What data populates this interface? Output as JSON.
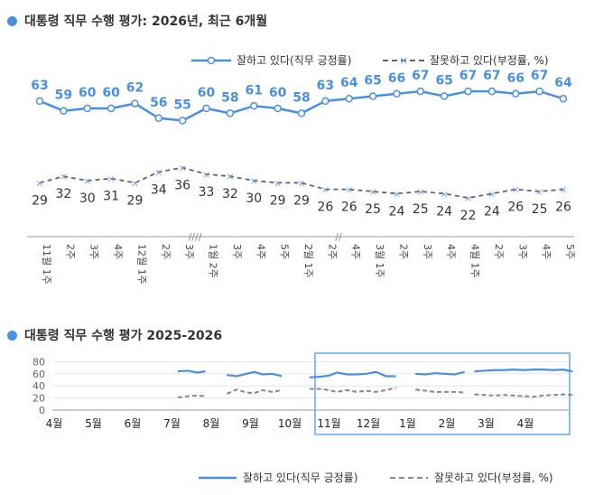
{
  "chart_data": [
    {
      "type": "line",
      "title": "대통령 직무 수행 평가: 2026년, 최근 6개월",
      "legend": "top-right",
      "categories": [
        "11월 1주",
        "2주",
        "3주",
        "4주",
        "12월 1주",
        "2주",
        "3주",
        "1월 2주",
        "3주",
        "4주",
        "5주",
        "2월 1주",
        "2주",
        "4주",
        "3월 1주",
        "2주",
        "3주",
        "4주",
        "4월 1주",
        "2주",
        "3주",
        "4주",
        "5주"
      ],
      "series": [
        {
          "name": "잘하고 있다(직무 긍정률)",
          "color": "#4a90e2",
          "values": [
            63,
            59,
            60,
            60,
            62,
            56,
            55,
            60,
            58,
            61,
            60,
            58,
            63,
            64,
            65,
            66,
            67,
            65,
            67,
            67,
            66,
            67,
            64
          ]
        },
        {
          "name": "잘못하고 있다(부정률, %)",
          "color": "#666666",
          "values": [
            29,
            32,
            30,
            31,
            29,
            34,
            36,
            33,
            32,
            30,
            29,
            29,
            26,
            26,
            25,
            24,
            25,
            24,
            22,
            24,
            26,
            25,
            26
          ]
        }
      ]
    },
    {
      "type": "line",
      "title": "대통령 직무 수행 평가 2025-2026",
      "legend": "bottom-right",
      "ylim": [
        0,
        80
      ],
      "yticks": [
        "0",
        "20",
        "40",
        "60",
        "80"
      ],
      "xticks": [
        "4월",
        "5월",
        "6월",
        "7월",
        "8월",
        "9월",
        "10월",
        "11월",
        "12월",
        "1월",
        "2월",
        "3월",
        "4월"
      ],
      "series": [
        {
          "name": "잘하고 있다(직무 긍정률)",
          "color": "#4a90e2",
          "segments": [
            [
              [
                7.15,
                64
              ],
              [
                7.4,
                65
              ],
              [
                7.65,
                62
              ],
              [
                7.85,
                64
              ]
            ],
            [
              [
                8.4,
                58
              ],
              [
                8.65,
                56
              ],
              [
                8.9,
                60
              ],
              [
                9.1,
                63
              ],
              [
                9.3,
                59
              ],
              [
                9.55,
                60
              ],
              [
                9.8,
                56
              ]
            ],
            [
              [
                10.5,
                54
              ],
              [
                10.75,
                55
              ],
              [
                11.0,
                57
              ],
              [
                11.2,
                62
              ],
              [
                11.45,
                59
              ],
              [
                11.7,
                59
              ],
              [
                11.95,
                60
              ],
              [
                12.2,
                63
              ],
              [
                12.45,
                56
              ],
              [
                12.7,
                56
              ]
            ],
            [
              [
                13.2,
                60
              ],
              [
                13.45,
                59
              ],
              [
                13.7,
                61
              ],
              [
                13.95,
                60
              ],
              [
                14.2,
                59
              ],
              [
                14.45,
                63
              ]
            ],
            [
              [
                14.7,
                64
              ],
              [
                14.95,
                65
              ],
              [
                15.2,
                66
              ],
              [
                15.45,
                66
              ],
              [
                15.7,
                67
              ],
              [
                15.95,
                66
              ],
              [
                16.2,
                67
              ],
              [
                16.45,
                67
              ],
              [
                16.7,
                66
              ],
              [
                16.95,
                67
              ],
              [
                17.2,
                64
              ]
            ]
          ]
        },
        {
          "name": "잘못하고 있다(부정률, %)",
          "color": "#888888",
          "segments": [
            [
              [
                7.15,
                21
              ],
              [
                7.4,
                23
              ],
              [
                7.65,
                24
              ],
              [
                7.85,
                23
              ]
            ],
            [
              [
                8.4,
                27
              ],
              [
                8.65,
                34
              ],
              [
                8.9,
                29
              ],
              [
                9.1,
                28
              ],
              [
                9.3,
                33
              ],
              [
                9.55,
                30
              ],
              [
                9.8,
                33
              ]
            ],
            [
              [
                10.5,
                35
              ],
              [
                10.75,
                35
              ],
              [
                11.0,
                33
              ],
              [
                11.2,
                30
              ],
              [
                11.45,
                33
              ],
              [
                11.7,
                30
              ],
              [
                11.95,
                32
              ],
              [
                12.2,
                30
              ],
              [
                12.45,
                33
              ],
              [
                12.7,
                37
              ]
            ],
            [
              [
                13.2,
                34
              ],
              [
                13.45,
                32
              ],
              [
                13.7,
                30
              ],
              [
                13.95,
                30
              ],
              [
                14.2,
                30
              ],
              [
                14.45,
                29
              ]
            ],
            [
              [
                14.7,
                26
              ],
              [
                14.95,
                25
              ],
              [
                15.2,
                24
              ],
              [
                15.45,
                25
              ],
              [
                15.7,
                24
              ],
              [
                15.95,
                23
              ],
              [
                16.2,
                22
              ],
              [
                16.45,
                24
              ],
              [
                16.7,
                25
              ],
              [
                16.95,
                26
              ],
              [
                17.2,
                25
              ]
            ]
          ]
        }
      ]
    }
  ],
  "colors": {
    "positive": "#4a90e2",
    "negative": "#666666",
    "highlight_box": "#6aa5e8"
  }
}
